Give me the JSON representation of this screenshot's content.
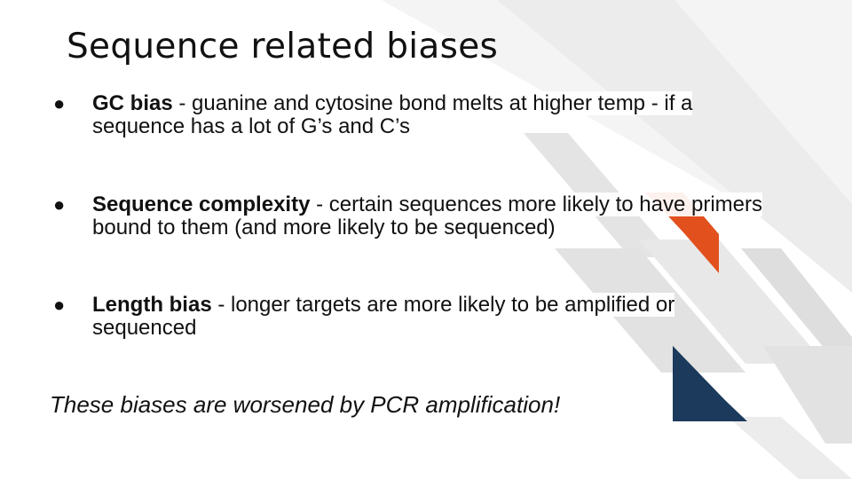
{
  "slide": {
    "title": "Sequence related biases",
    "bullets": [
      {
        "marker": "●",
        "term": "GC bias",
        "text": " - guanine and cytosine bond melts at higher temp - if a sequence has a lot of G’s and C’s"
      },
      {
        "marker": "●",
        "term": "Sequence complexity",
        "text": " - certain sequences more likely to have primers bound to them (and more likely to be sequenced)"
      },
      {
        "marker": "●",
        "term": "Length bias",
        "text": " - longer targets are more likely to be amplified or sequenced"
      }
    ],
    "note": "These biases are worsened by PCR amplification!"
  },
  "colors": {
    "accent_orange": "#e2501e",
    "accent_navy": "#1b3a5c",
    "decor_gray": "#e6e6e6"
  }
}
